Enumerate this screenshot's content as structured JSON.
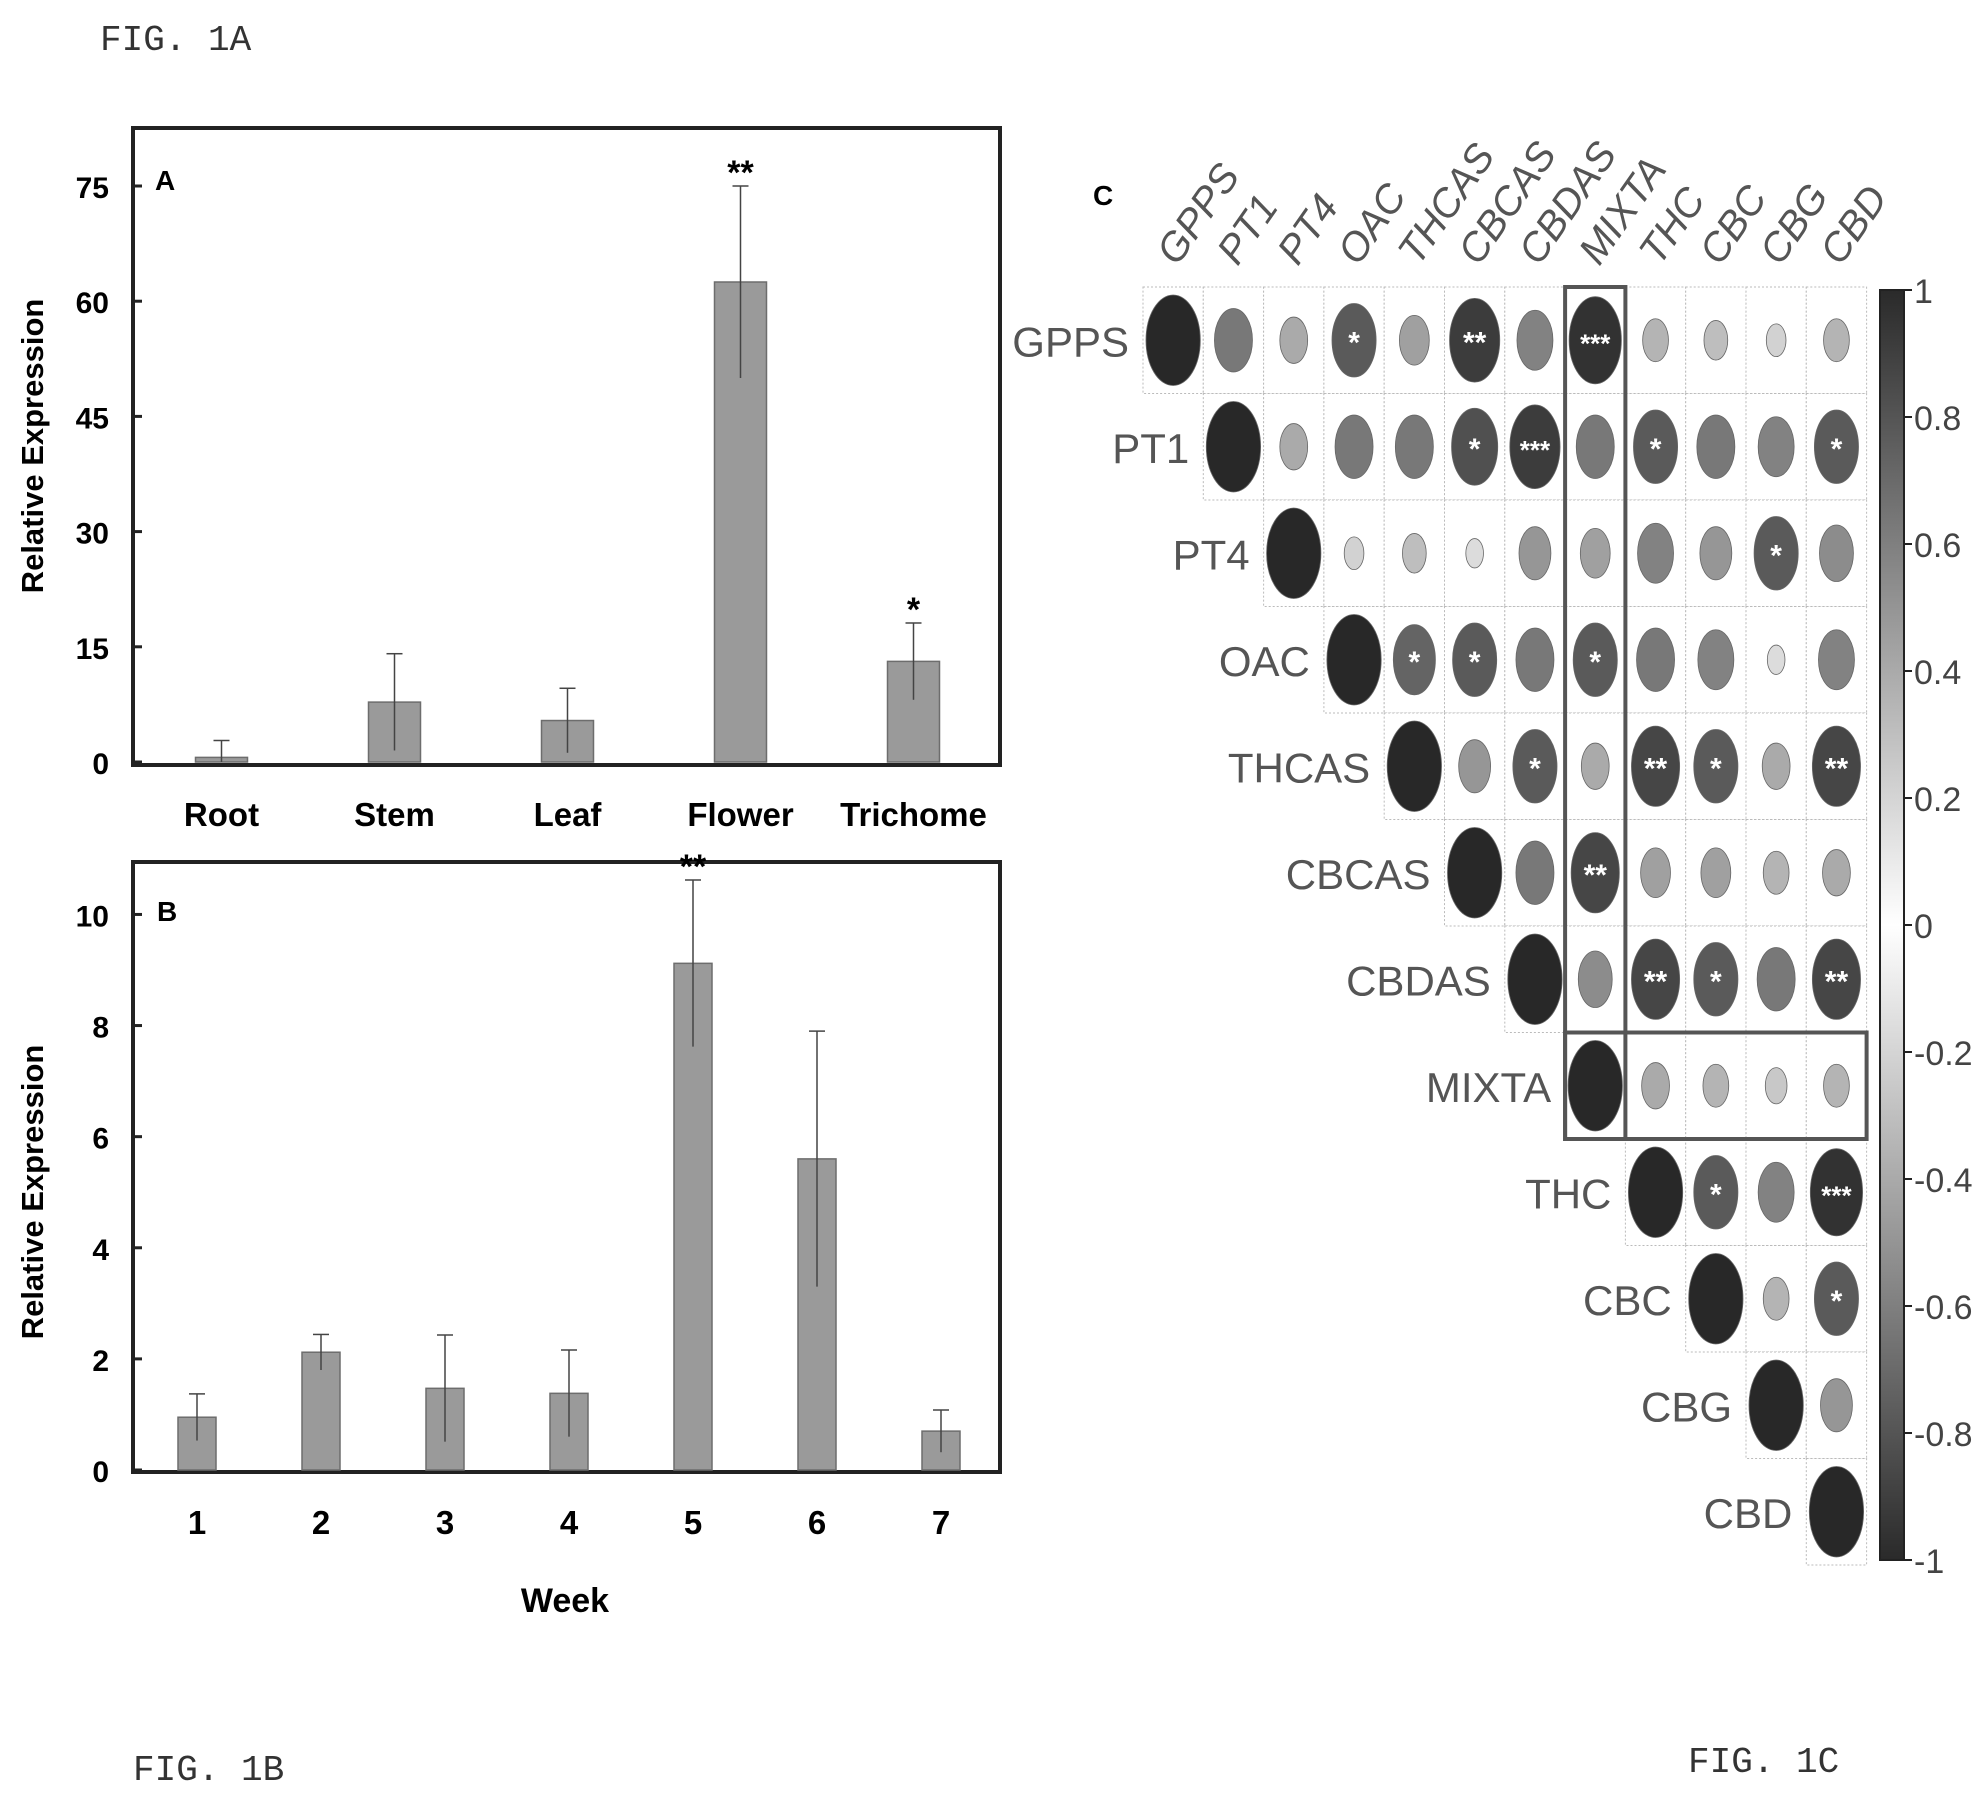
{
  "figure_labels": {
    "fig_1a": "FIG. 1A",
    "fig_1b": "FIG. 1B",
    "fig_1c": "FIG. 1C"
  },
  "chart_data": [
    {
      "type": "bar",
      "panel_label": "A",
      "categories": [
        "Root",
        "Stem",
        "Leaf",
        "Flower",
        "Trichome"
      ],
      "values": [
        0.6,
        7.8,
        5.4,
        62.5,
        13.1
      ],
      "errors": [
        2.2,
        6.3,
        4.2,
        12.5,
        5.0
      ],
      "significance": [
        "",
        "",
        "",
        "**",
        "*"
      ],
      "ylabel": "Relative Expression",
      "xlabel": "",
      "ylim": [
        0,
        75
      ],
      "yticks": [
        0,
        15,
        30,
        45,
        60,
        75
      ]
    },
    {
      "type": "bar",
      "panel_label": "B",
      "categories": [
        "1",
        "2",
        "3",
        "4",
        "5",
        "6",
        "7"
      ],
      "values": [
        0.95,
        2.12,
        1.47,
        1.38,
        9.12,
        5.6,
        0.7
      ],
      "errors": [
        0.42,
        0.32,
        0.96,
        0.78,
        1.5,
        2.3,
        0.38
      ],
      "significance": [
        "",
        "",
        "",
        "",
        "**",
        "",
        ""
      ],
      "ylabel": "Relative Expression",
      "xlabel": "Week",
      "ylim": [
        0,
        10.8
      ],
      "yticks": [
        0,
        2,
        4,
        6,
        8,
        10
      ]
    },
    {
      "type": "heatmap",
      "panel_label": "C",
      "labels": [
        "GPPS",
        "PT1",
        "PT4",
        "OAC",
        "THCAS",
        "CBCAS",
        "CBDAS",
        "MIXTA",
        "THC",
        "CBC",
        "CBG",
        "CBD"
      ],
      "colorbar_ticks": [
        "1",
        "0.8",
        "0.6",
        "0.4",
        "0.2",
        "0",
        "-0.2",
        "-0.4",
        "-0.6",
        "-0.8",
        "-1"
      ],
      "matrix": [
        [
          1,
          0.6,
          0.35,
          0.75,
          0.4,
          0.9,
          0.55,
          0.95,
          0.3,
          0.25,
          0.15,
          0.3
        ],
        [
          null,
          1,
          0.35,
          0.6,
          0.6,
          0.8,
          0.9,
          0.6,
          0.75,
          0.6,
          0.55,
          0.75
        ],
        [
          null,
          null,
          1,
          0.15,
          0.25,
          0.1,
          0.45,
          0.4,
          0.55,
          0.45,
          0.75,
          0.5
        ],
        [
          null,
          null,
          null,
          1,
          0.7,
          0.75,
          0.6,
          0.75,
          0.6,
          0.55,
          0.1,
          0.55
        ],
        [
          null,
          null,
          null,
          null,
          1,
          0.45,
          0.75,
          0.35,
          0.85,
          0.75,
          0.35,
          0.85
        ],
        [
          null,
          null,
          null,
          null,
          null,
          1,
          0.6,
          0.85,
          0.4,
          0.4,
          0.3,
          0.35
        ],
        [
          null,
          null,
          null,
          null,
          null,
          null,
          1,
          0.5,
          0.85,
          0.75,
          0.6,
          0.85
        ],
        [
          null,
          null,
          null,
          null,
          null,
          null,
          null,
          1,
          0.35,
          0.3,
          0.2,
          0.3
        ],
        [
          null,
          null,
          null,
          null,
          null,
          null,
          null,
          null,
          1,
          0.75,
          0.55,
          0.95
        ],
        [
          null,
          null,
          null,
          null,
          null,
          null,
          null,
          null,
          null,
          1,
          0.3,
          0.75
        ],
        [
          null,
          null,
          null,
          null,
          null,
          null,
          null,
          null,
          null,
          null,
          1,
          0.45
        ],
        [
          null,
          null,
          null,
          null,
          null,
          null,
          null,
          null,
          null,
          null,
          null,
          1
        ]
      ],
      "stars": [
        [
          "",
          "",
          "",
          "*",
          "",
          "**",
          "",
          "***",
          "",
          "",
          "",
          ""
        ],
        [
          "",
          "",
          "",
          "",
          "",
          "*",
          "***",
          "",
          "*",
          "",
          "",
          "*"
        ],
        [
          "",
          "",
          "",
          "",
          "",
          "",
          "",
          "",
          "",
          "",
          "*",
          ""
        ],
        [
          "",
          "",
          "",
          "",
          "*",
          "*",
          "",
          "*",
          "",
          "",
          "",
          ""
        ],
        [
          "",
          "",
          "",
          "",
          "",
          "",
          "*",
          "",
          "**",
          "*",
          "",
          "**"
        ],
        [
          "",
          "",
          "",
          "",
          "",
          "",
          "",
          "**",
          "",
          "",
          "",
          ""
        ],
        [
          "",
          "",
          "",
          "",
          "",
          "",
          "",
          "",
          "**",
          "*",
          "",
          "**"
        ],
        [
          "",
          "",
          "",
          "",
          "",
          "",
          "",
          "",
          "",
          "",
          "",
          ""
        ],
        [
          "",
          "",
          "",
          "",
          "",
          "",
          "",
          "",
          "",
          "*",
          "",
          "***"
        ],
        [
          "",
          "",
          "",
          "",
          "",
          "",
          "",
          "",
          "",
          "",
          "",
          "*"
        ],
        [
          "",
          "",
          "",
          "",
          "",
          "",
          "",
          "",
          "",
          "",
          "",
          ""
        ],
        [
          "",
          "",
          "",
          "",
          "",
          "",
          "",
          "",
          "",
          "",
          "",
          ""
        ]
      ],
      "highlight": {
        "column": "MIXTA",
        "row": "MIXTA"
      }
    }
  ]
}
